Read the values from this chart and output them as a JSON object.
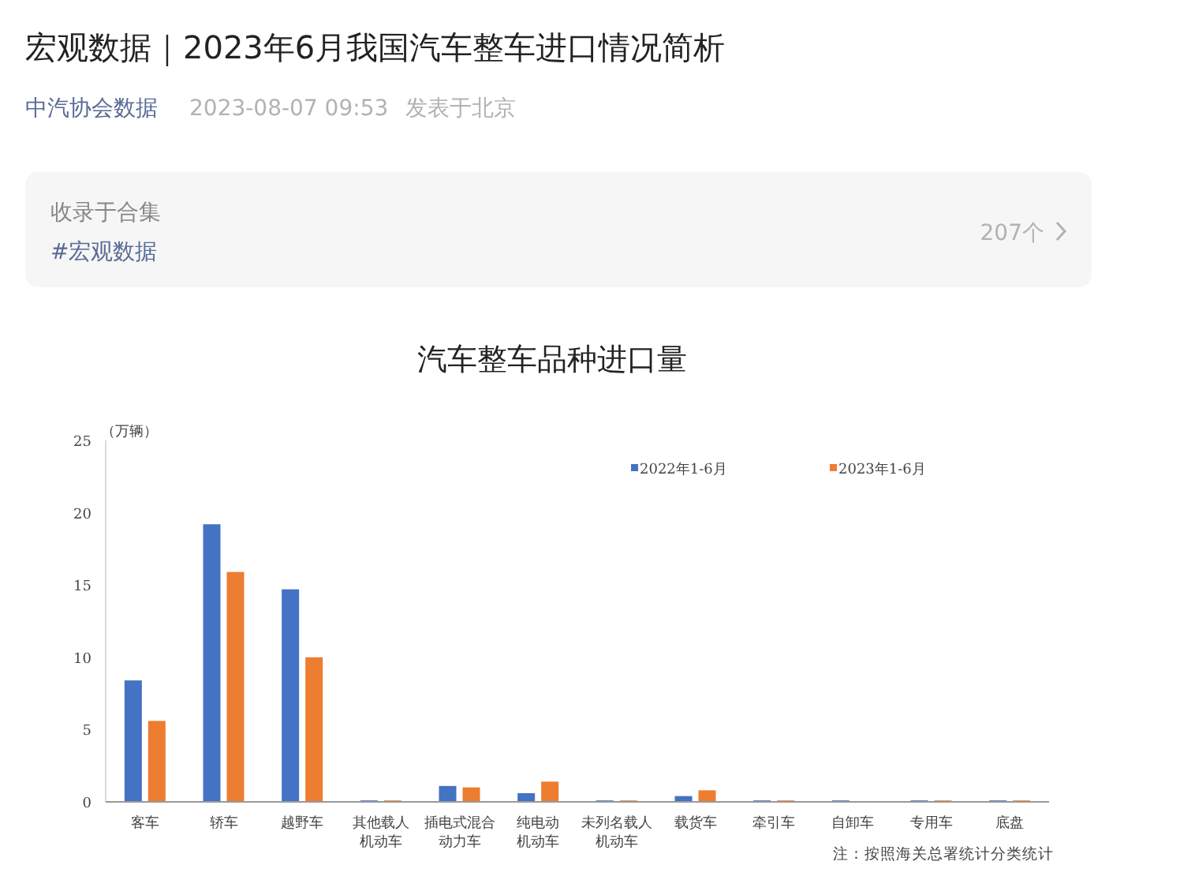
{
  "chart_data": {
    "type": "bar",
    "title": "汽车整车品种进口量",
    "ylabel": "（万辆）",
    "categories": [
      "客车",
      "轿车",
      "越野车",
      "其他载人机动车",
      "插电式混合动力车",
      "纯电动机动车",
      "未列名载人机动车",
      "载货车",
      "牵引车",
      "自卸车",
      "专用车",
      "底盘"
    ],
    "series": [
      {
        "name": "2022年1-6月",
        "color": "#4472c4",
        "values": [
          8.4,
          19.2,
          14.7,
          0.1,
          1.1,
          0.6,
          0.1,
          0.4,
          0.1,
          0.1,
          0.1,
          0.1
        ]
      },
      {
        "name": "2023年1-6月",
        "color": "#ed7d31",
        "values": [
          5.6,
          15.9,
          10.0,
          0.1,
          1.0,
          1.4,
          0.1,
          0.8,
          0.1,
          0,
          0.1,
          0.1
        ]
      }
    ],
    "ylim": [
      0,
      25
    ],
    "yticks": [
      0,
      5,
      10,
      15,
      20,
      25
    ],
    "grid": false,
    "legend": "top",
    "annotations": [
      "注：按照海关总署统计分类统计",
      "宏观数据｜2023年6月我国汽车整车进口情况简析",
      "中汽协会数据",
      "2023-08-07 09:53",
      "发表于北京",
      "收录于合集",
      "#宏观数据",
      "207个"
    ]
  }
}
